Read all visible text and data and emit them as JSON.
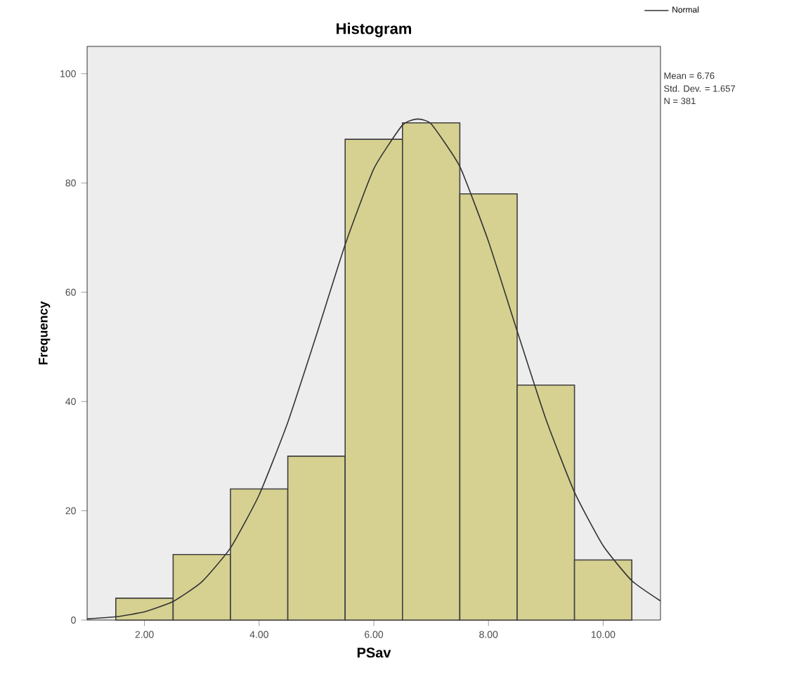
{
  "chart_data": {
    "type": "histogram",
    "title": "Histogram",
    "xlabel": "PSav",
    "ylabel": "Frequency",
    "bins": [
      1.5,
      2.5,
      3.5,
      4.5,
      5.5,
      6.5,
      7.5,
      8.5,
      9.5,
      10.5
    ],
    "values": [
      4,
      12,
      24,
      30,
      88,
      91,
      78,
      43,
      11
    ],
    "color": "#d6d191",
    "series": [
      {
        "name": "Normal",
        "type": "line",
        "color": "#333333",
        "x": [
          1,
          1.5,
          2,
          2.5,
          3,
          3.5,
          4,
          4.5,
          5,
          5.5,
          6,
          6.5,
          6.76,
          7,
          7.5,
          8,
          8.5,
          9,
          9.5,
          10,
          10.5,
          11
        ],
        "values": [
          0.2,
          0.6,
          1.5,
          3.4,
          7.0,
          13.2,
          22.9,
          36.2,
          52.2,
          68.7,
          82.6,
          90.6,
          91.7,
          90.8,
          83.0,
          69.3,
          52.9,
          36.8,
          23.4,
          13.6,
          7.2,
          3.5
        ]
      }
    ],
    "xlim": [
      1,
      11
    ],
    "ylim": [
      0,
      105
    ],
    "xticks": [
      {
        "value": 2,
        "label": "2.00"
      },
      {
        "value": 4,
        "label": "4.00"
      },
      {
        "value": 6,
        "label": "6.00"
      },
      {
        "value": 8,
        "label": "8.00"
      },
      {
        "value": 10,
        "label": "10.00"
      }
    ],
    "yticks": [
      0,
      20,
      40,
      60,
      80,
      100
    ],
    "grid": false,
    "legend": "top right",
    "marker": "none",
    "line_style": "solid",
    "annotations": [
      "Mean = 6.76",
      "Std. Dev. = 1.657",
      "N = 381"
    ]
  }
}
